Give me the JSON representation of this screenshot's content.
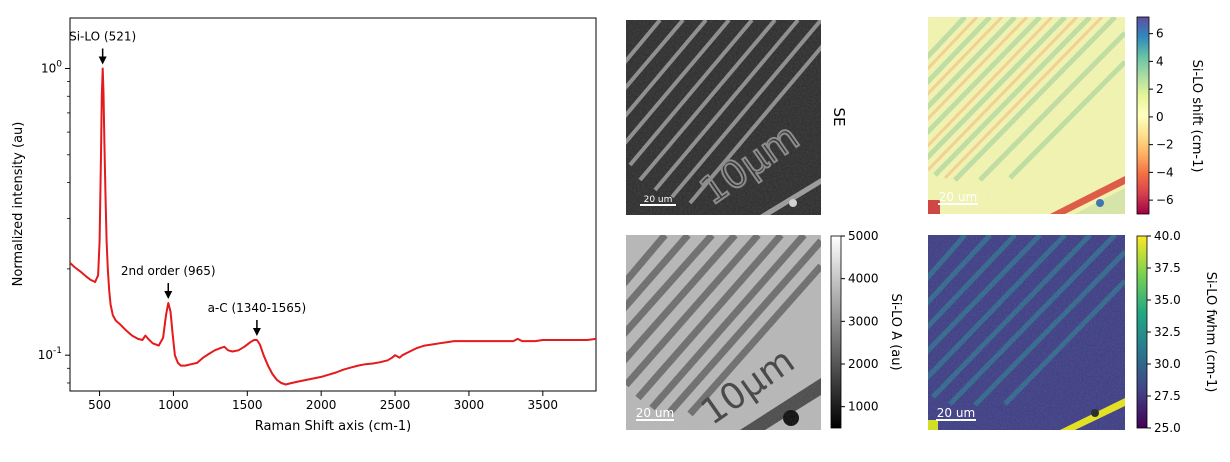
{
  "chart_data": [
    {
      "type": "line",
      "xlabel": "Raman Shift axis (cm-1)",
      "ylabel": "Normalized intensity (au)",
      "xlim": [
        300,
        3860
      ],
      "ylim": [
        0.075,
        1.5
      ],
      "yscale": "log",
      "xticks": [
        "500",
        "1000",
        "1500",
        "2000",
        "2500",
        "3000",
        "3500"
      ],
      "yticks": [
        {
          "base": "10",
          "exp": "0",
          "value": 1
        },
        {
          "base": "10",
          "exp": "-1",
          "value": 0.1
        }
      ],
      "series_color": "#e41a1c",
      "series": [
        {
          "x": [
            300,
            330,
            370,
            410,
            440,
            470,
            490,
            500,
            510,
            515,
            521,
            527,
            533,
            540,
            548,
            556,
            565,
            575,
            590,
            610,
            640,
            680,
            720,
            760,
            790,
            810,
            830,
            860,
            900,
            930,
            950,
            965,
            980,
            995,
            1010,
            1030,
            1050,
            1080,
            1120,
            1160,
            1200,
            1240,
            1280,
            1320,
            1345,
            1370,
            1400,
            1440,
            1480,
            1520,
            1545,
            1565,
            1585,
            1610,
            1640,
            1670,
            1700,
            1730,
            1760,
            1800,
            1850,
            1900,
            1950,
            2000,
            2050,
            2100,
            2150,
            2200,
            2250,
            2300,
            2350,
            2400,
            2450,
            2480,
            2500,
            2515,
            2530,
            2550,
            2600,
            2650,
            2700,
            2750,
            2800,
            2850,
            2900,
            2950,
            3000,
            3050,
            3100,
            3150,
            3200,
            3250,
            3300,
            3330,
            3360,
            3400,
            3450,
            3500,
            3550,
            3600,
            3650,
            3700,
            3750,
            3800,
            3860
          ],
          "y": [
            0.21,
            0.203,
            0.196,
            0.188,
            0.183,
            0.18,
            0.19,
            0.25,
            0.5,
            0.8,
            1.0,
            0.82,
            0.55,
            0.36,
            0.25,
            0.2,
            0.168,
            0.15,
            0.138,
            0.132,
            0.128,
            0.122,
            0.117,
            0.114,
            0.113,
            0.117,
            0.114,
            0.11,
            0.108,
            0.115,
            0.138,
            0.152,
            0.142,
            0.118,
            0.1,
            0.094,
            0.092,
            0.092,
            0.093,
            0.094,
            0.098,
            0.101,
            0.104,
            0.106,
            0.107,
            0.104,
            0.103,
            0.104,
            0.107,
            0.111,
            0.113,
            0.113,
            0.109,
            0.1,
            0.092,
            0.086,
            0.082,
            0.08,
            0.079,
            0.08,
            0.081,
            0.082,
            0.083,
            0.084,
            0.0855,
            0.087,
            0.089,
            0.0905,
            0.092,
            0.093,
            0.0935,
            0.0945,
            0.096,
            0.098,
            0.1,
            0.099,
            0.098,
            0.1,
            0.103,
            0.106,
            0.108,
            0.109,
            0.11,
            0.111,
            0.112,
            0.112,
            0.112,
            0.112,
            0.112,
            0.112,
            0.112,
            0.112,
            0.112,
            0.114,
            0.112,
            0.112,
            0.112,
            0.113,
            0.113,
            0.113,
            0.113,
            0.113,
            0.113,
            0.113,
            0.114
          ]
        }
      ],
      "annotations": [
        {
          "text": "Si-LO (521)",
          "x": 521,
          "y": 1.0
        },
        {
          "text": "2nd order (965)",
          "x": 965,
          "y": 0.152
        },
        {
          "text": "a-C (1340-1565)",
          "x": 1565,
          "y": 0.113
        }
      ]
    },
    {
      "type": "heatmap",
      "label": "SE",
      "scalebar": "20 um"
    },
    {
      "type": "heatmap",
      "scalebar": "20 um",
      "colormap": "Spectral",
      "colorbar_label": "Si-LO shift (cm-1)",
      "vmin": -7,
      "vmax": 7.2,
      "ticks": [
        "6",
        "4",
        "2",
        "0",
        "−2",
        "−4",
        "−6"
      ],
      "tick_values": [
        6,
        4,
        2,
        0,
        -2,
        -4,
        -6
      ]
    },
    {
      "type": "heatmap",
      "scalebar": "20 um",
      "colormap": "gray",
      "colorbar_label": "Si-LO A (au)",
      "vmin": 500,
      "vmax": 5000,
      "ticks": [
        "5000",
        "4000",
        "3000",
        "2000",
        "1000"
      ],
      "tick_values": [
        5000,
        4000,
        3000,
        2000,
        1000
      ]
    },
    {
      "type": "heatmap",
      "scalebar": "20 um",
      "colormap": "viridis",
      "colorbar_label": "Si-LO fwhm (cm-1)",
      "vmin": 25.0,
      "vmax": 40.0,
      "ticks": [
        "40.0",
        "37.5",
        "35.0",
        "32.5",
        "30.0",
        "27.5",
        "25.0"
      ],
      "tick_values": [
        40.0,
        37.5,
        35.0,
        32.5,
        30.0,
        27.5,
        25.0
      ]
    }
  ],
  "images": {
    "se_micrograph_text": "10μm"
  }
}
